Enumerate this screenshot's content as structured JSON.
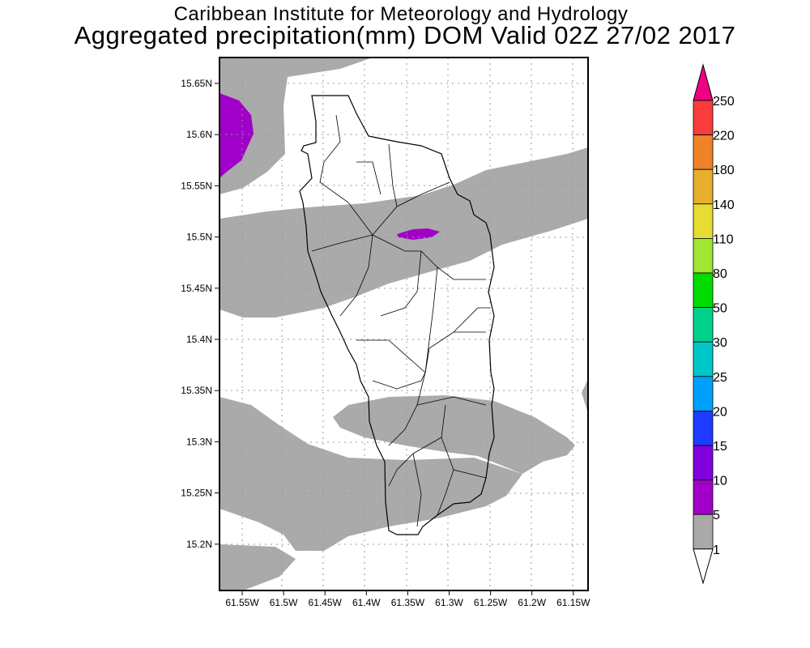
{
  "title": {
    "line1": "Caribbean Institute for Meteorology and Hydrology",
    "line2": "Aggregated precipitation(mm) DOM Valid 02Z 27/02 2017"
  },
  "map": {
    "lat_ticks": [
      "15.65N",
      "15.6N",
      "15.55N",
      "15.5N",
      "15.45N",
      "15.4N",
      "15.35N",
      "15.3N",
      "15.25N",
      "15.2N"
    ],
    "lon_ticks": [
      "61.55W",
      "61.5W",
      "61.45W",
      "61.4W",
      "61.35W",
      "61.3W",
      "61.25W",
      "61.2W",
      "61.15W"
    ]
  },
  "colorbar": {
    "labels": [
      "250",
      "220",
      "180",
      "140",
      "110",
      "80",
      "50",
      "30",
      "25",
      "20",
      "15",
      "10",
      "5",
      "1"
    ],
    "colors": [
      "#f00082",
      "#fa3c3c",
      "#f08228",
      "#e6af2d",
      "#e6dc32",
      "#a0e632",
      "#00dc00",
      "#00d28c",
      "#00c8c8",
      "#00a0ff",
      "#1e3cff",
      "#8200dc",
      "#a000c8",
      "#aaaaaa",
      "#ffffff"
    ]
  }
}
